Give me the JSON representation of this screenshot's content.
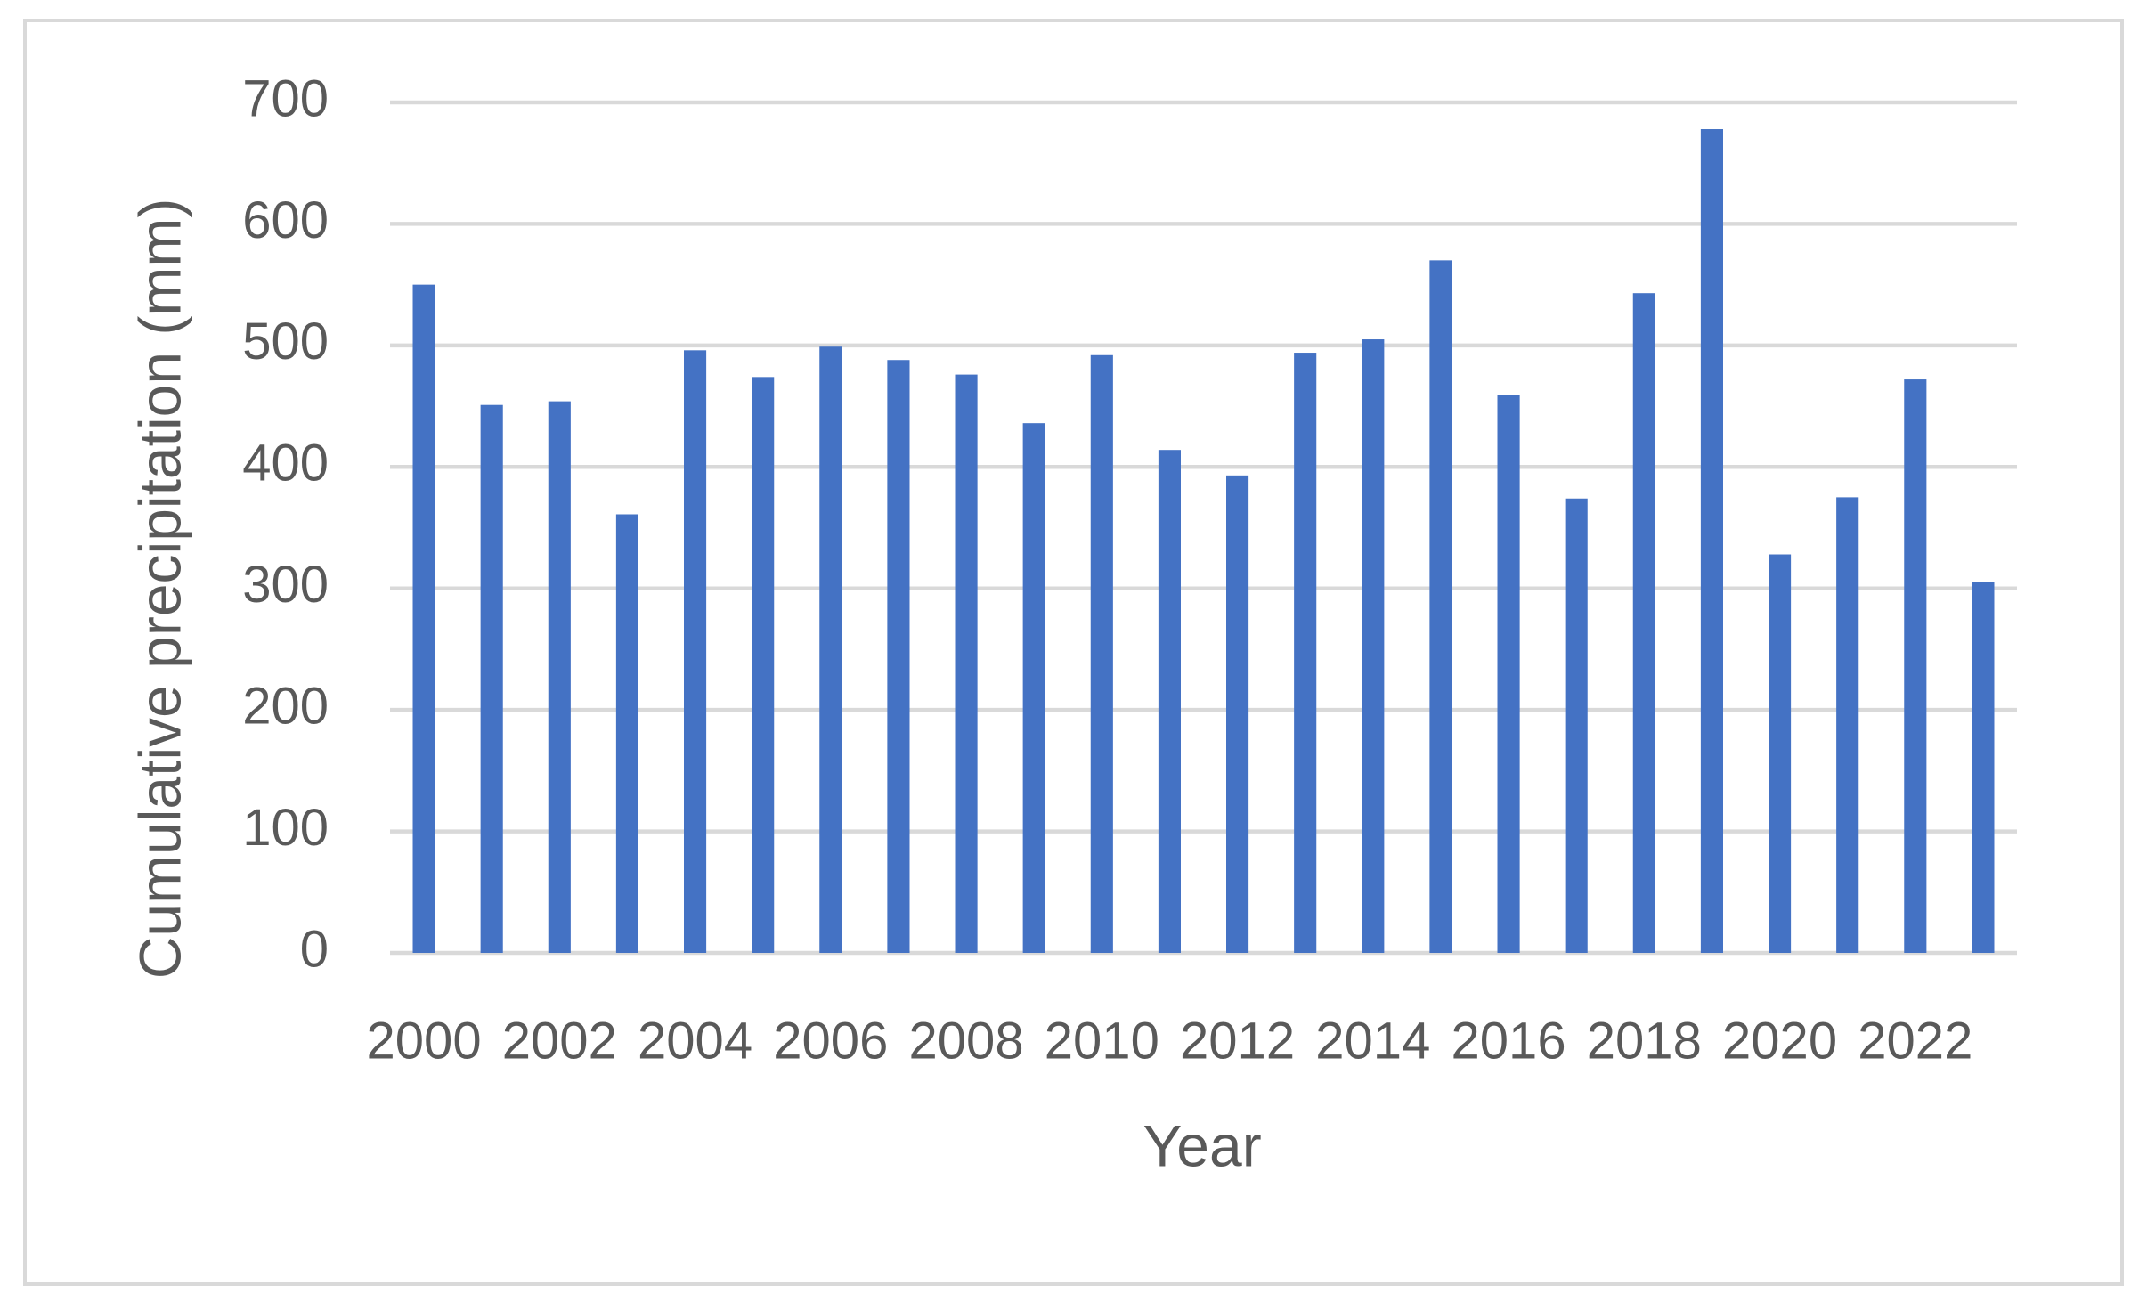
{
  "chart_data": {
    "type": "bar",
    "x_label": "Year",
    "y_label": "Cumulative precipitation (mm)",
    "categories": [
      "2000",
      null,
      "2002",
      null,
      "2004",
      null,
      "2006",
      null,
      "2008",
      null,
      "2010",
      null,
      "2012",
      null,
      "2014",
      null,
      "2016",
      null,
      "2018",
      null,
      "2020",
      null,
      "2022",
      null
    ],
    "values": [
      550,
      451,
      454,
      361,
      496,
      474,
      499,
      488,
      476,
      436,
      492,
      414,
      393,
      494,
      505,
      570,
      459,
      374,
      543,
      678,
      328,
      375,
      472,
      305
    ],
    "color": "#4472c4",
    "ylim": [
      0,
      700
    ],
    "yticks": [
      0,
      100,
      200,
      300,
      400,
      500,
      600,
      700
    ],
    "grid": true
  }
}
